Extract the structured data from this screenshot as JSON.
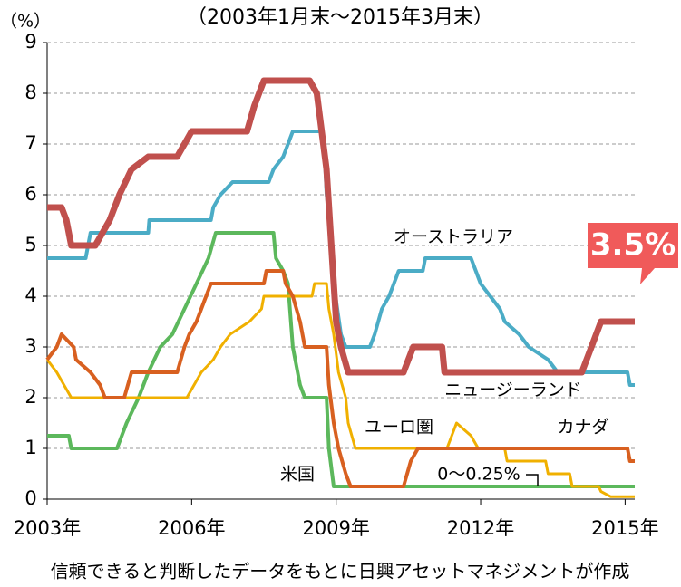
{
  "chart_data": {
    "type": "line",
    "subtitle": "（2003年1月末～2015年3月末）",
    "y_label": "（%）",
    "note": "信頼できると判断したデータをもとに日興アセットマネジメントが作成",
    "xlim": [
      2003,
      2015.2
    ],
    "xticks": [
      {
        "value": 2003,
        "label": "2003年"
      },
      {
        "value": 2006,
        "label": "2006年"
      },
      {
        "value": 2009,
        "label": "2009年"
      },
      {
        "value": 2012,
        "label": "2012年"
      },
      {
        "value": 2015,
        "label": "2015年"
      }
    ],
    "ylim": [
      0,
      9
    ],
    "yticks": [
      0,
      1,
      2,
      3,
      4,
      5,
      6,
      7,
      8,
      9
    ],
    "grid": true,
    "annotations": [
      "オーストラリア",
      "ニュージーランド",
      "ユーロ圏",
      "カナダ",
      "米国",
      "0〜0.25%",
      "3.5%"
    ],
    "series": [
      {
        "name": "オーストラリア",
        "color": "#4bacc6",
        "x": [
          2003,
          2003.8,
          2003.9,
          2005.1,
          2005.12,
          2006.4,
          2006.45,
          2006.6,
          2006.85,
          2007.6,
          2007.7,
          2007.9,
          2008.0,
          2008.1,
          2008.7,
          2008.75,
          2008.8,
          2008.9,
          2008.95,
          2009.1,
          2009.2,
          2009.7,
          2009.8,
          2009.95,
          2010.1,
          2010.3,
          2010.8,
          2010.85,
          2011.8,
          2011.9,
          2012.0,
          2012.4,
          2012.5,
          2012.8,
          2013.0,
          2013.4,
          2013.6,
          2015.05,
          2015.1,
          2015.2
        ],
        "values": [
          4.75,
          4.75,
          5.25,
          5.25,
          5.5,
          5.5,
          5.75,
          6.0,
          6.25,
          6.25,
          6.5,
          6.75,
          7.0,
          7.25,
          7.25,
          7.0,
          6.0,
          5.25,
          4.25,
          3.25,
          3.0,
          3.0,
          3.25,
          3.75,
          4.0,
          4.5,
          4.5,
          4.75,
          4.75,
          4.5,
          4.25,
          3.75,
          3.5,
          3.25,
          3.0,
          2.75,
          2.5,
          2.5,
          2.25,
          2.25
        ]
      },
      {
        "name": "ニュージーランド",
        "color": "#c0504d",
        "x": [
          2003,
          2003.3,
          2003.4,
          2003.5,
          2004.0,
          2004.3,
          2004.5,
          2004.75,
          2005.1,
          2005.7,
          2005.85,
          2006.0,
          2007.15,
          2007.3,
          2007.5,
          2008.45,
          2008.6,
          2008.8,
          2008.9,
          2009.0,
          2009.1,
          2009.25,
          2010.4,
          2010.6,
          2011.2,
          2011.25,
          2014.1,
          2014.3,
          2014.5,
          2015.2
        ],
        "values": [
          5.75,
          5.75,
          5.5,
          5.0,
          5.0,
          5.5,
          6.0,
          6.5,
          6.75,
          6.75,
          7.0,
          7.25,
          7.25,
          7.75,
          8.25,
          8.25,
          8.0,
          6.5,
          5.0,
          3.5,
          3.0,
          2.5,
          2.5,
          3.0,
          3.0,
          2.5,
          2.5,
          3.0,
          3.5,
          3.5
        ]
      },
      {
        "name": "米国",
        "color": "#5cb85c",
        "x": [
          2003,
          2003.45,
          2003.5,
          2004.45,
          2004.65,
          2004.9,
          2005.1,
          2005.35,
          2005.6,
          2005.85,
          2006.1,
          2006.35,
          2006.5,
          2007.7,
          2007.75,
          2007.9,
          2008.0,
          2008.1,
          2008.25,
          2008.35,
          2008.8,
          2008.85,
          2008.95,
          2015.2
        ],
        "values": [
          1.25,
          1.25,
          1.0,
          1.0,
          1.5,
          2.0,
          2.5,
          3.0,
          3.25,
          3.75,
          4.25,
          4.75,
          5.25,
          5.25,
          4.75,
          4.5,
          4.25,
          3.0,
          2.25,
          2.0,
          2.0,
          1.0,
          0.25,
          0.25
        ]
      },
      {
        "name": "ユーロ圏",
        "color": "#f0b000",
        "x": [
          2003,
          2003.2,
          2003.5,
          2005.9,
          2006.2,
          2006.45,
          2006.6,
          2006.8,
          2007.2,
          2007.45,
          2007.5,
          2008.5,
          2008.55,
          2008.8,
          2008.85,
          2008.95,
          2009.05,
          2009.2,
          2009.25,
          2009.4,
          2011.3,
          2011.5,
          2011.8,
          2011.95,
          2012.5,
          2012.55,
          2013.35,
          2013.4,
          2013.85,
          2013.9,
          2014.45,
          2014.5,
          2014.7,
          2015.2
        ],
        "values": [
          2.75,
          2.5,
          2.0,
          2.0,
          2.5,
          2.75,
          3.0,
          3.25,
          3.5,
          3.75,
          4.0,
          4.0,
          4.25,
          4.25,
          3.75,
          3.25,
          2.5,
          2.0,
          1.5,
          1.0,
          1.0,
          1.5,
          1.25,
          1.0,
          1.0,
          0.75,
          0.75,
          0.5,
          0.5,
          0.25,
          0.25,
          0.15,
          0.05,
          0.05
        ]
      },
      {
        "name": "カナダ",
        "color": "#d86020",
        "x": [
          2003,
          2003.2,
          2003.3,
          2003.55,
          2003.6,
          2003.9,
          2004.1,
          2004.2,
          2004.6,
          2004.75,
          2005.7,
          2005.85,
          2005.95,
          2006.1,
          2006.4,
          2007.5,
          2007.55,
          2007.9,
          2007.95,
          2008.1,
          2008.25,
          2008.35,
          2008.8,
          2008.85,
          2008.95,
          2009.05,
          2009.2,
          2009.3,
          2010.4,
          2010.55,
          2010.7,
          2015.05,
          2015.1,
          2015.2
        ],
        "values": [
          2.75,
          3.0,
          3.25,
          3.0,
          2.75,
          2.5,
          2.25,
          2.0,
          2.0,
          2.5,
          2.5,
          3.0,
          3.25,
          3.5,
          4.25,
          4.25,
          4.5,
          4.5,
          4.25,
          4.0,
          3.5,
          3.0,
          3.0,
          2.25,
          1.5,
          1.0,
          0.5,
          0.25,
          0.25,
          0.75,
          1.0,
          1.0,
          0.75,
          0.75
        ]
      }
    ]
  }
}
